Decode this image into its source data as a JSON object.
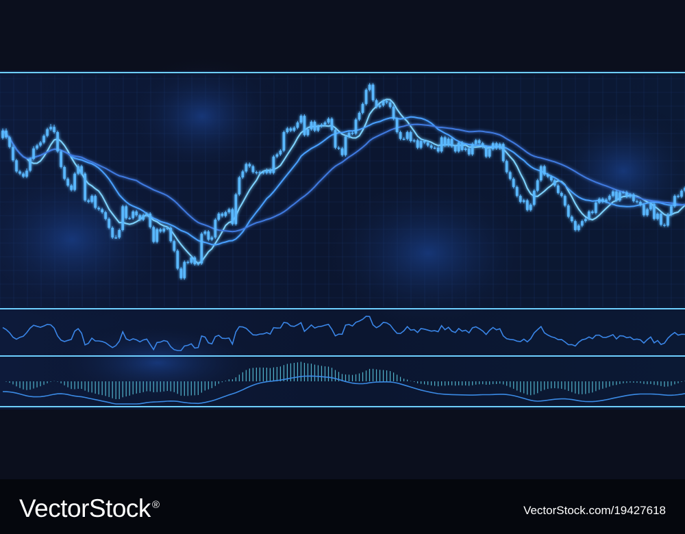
{
  "chart_data": {
    "type": "candlestick",
    "panels": [
      {
        "name": "price",
        "type": "candlestick",
        "x": [
          0,
          1,
          2,
          3,
          4,
          5,
          6,
          7,
          8,
          9,
          10,
          11,
          12,
          13,
          14,
          15,
          16,
          17,
          18,
          19,
          20,
          21,
          22,
          23,
          24,
          25,
          26,
          27,
          28,
          29,
          30,
          31,
          32,
          33,
          34,
          35,
          36,
          37,
          38,
          39,
          40,
          41,
          42,
          43,
          44,
          45,
          46,
          47,
          48,
          49,
          50,
          51,
          52,
          53,
          54,
          55,
          56,
          57,
          58,
          59,
          60,
          61,
          62,
          63,
          64,
          65,
          66,
          67,
          68,
          69,
          70,
          71,
          72,
          73,
          74,
          75,
          76,
          77,
          78,
          79,
          80,
          81,
          82,
          83,
          84,
          85,
          86,
          87,
          88,
          89,
          90,
          91,
          92,
          93,
          94,
          95,
          96,
          97,
          98,
          99,
          100,
          101,
          102,
          103,
          104,
          105,
          106,
          107,
          108,
          109,
          110,
          111,
          112,
          113,
          114,
          115,
          116,
          117,
          118,
          119,
          120,
          121,
          122,
          123,
          124,
          125,
          126,
          127,
          128,
          129,
          130,
          131,
          132,
          133,
          134,
          135,
          136,
          137,
          138,
          139,
          140,
          141,
          142,
          143,
          144,
          145,
          146,
          147,
          148,
          149,
          150,
          151,
          152,
          153,
          154,
          155,
          156,
          157,
          158,
          159,
          160,
          161,
          162,
          163,
          164,
          165,
          166,
          167,
          168,
          169,
          170,
          171,
          172,
          173,
          174,
          175,
          176,
          177,
          178,
          179,
          180,
          181,
          182,
          183,
          184,
          185,
          186,
          187,
          188,
          189,
          190,
          191,
          192,
          193,
          194,
          195,
          196,
          197,
          198,
          199
        ],
        "close": [
          350,
          341,
          328,
          310,
          295,
          292,
          288,
          296,
          312,
          326,
          330,
          334,
          343,
          352,
          355,
          348,
          322,
          301,
          285,
          276,
          270,
          292,
          302,
          292,
          256,
          254,
          262,
          246,
          244,
          240,
          231,
          219,
          206,
          206,
          216,
          248,
          232,
          232,
          241,
          236,
          230,
          236,
          238,
          220,
          200,
          217,
          214,
          218,
          219,
          201,
          188,
          164,
          151,
          173,
          172,
          179,
          170,
          171,
          211,
          214,
          203,
          206,
          230,
          238,
          235,
          240,
          244,
          224,
          264,
          287,
          295,
          305,
          302,
          294,
          293,
          294,
          293,
          297,
          293,
          315,
          318,
          323,
          348,
          353,
          350,
          354,
          361,
          370,
          344,
          352,
          362,
          350,
          356,
          358,
          361,
          366,
          351,
          327,
          326,
          317,
          342,
          347,
          346,
          365,
          374,
          386,
          405,
          412,
          391,
          382,
          384,
          390,
          388,
          382,
          366,
          348,
          339,
          339,
          348,
          336,
          337,
          327,
          336,
          334,
          330,
          327,
          327,
          322,
          341,
          330,
          339,
          329,
          322,
          334,
          324,
          326,
          318,
          332,
          337,
          333,
          328,
          315,
          325,
          333,
          326,
          332,
          309,
          294,
          285,
          274,
          262,
          254,
          256,
          243,
          250,
          269,
          283,
          302,
          291,
          288,
          283,
          276,
          266,
          262,
          249,
          234,
          228,
          216,
          222,
          228,
          231,
          241,
          239,
          253,
          258,
          254,
          257,
          262,
          268,
          256,
          267,
          267,
          261,
          264,
          255,
          254,
          250,
          236,
          244,
          251,
          231,
          238,
          223,
          222,
          237,
          248,
          262,
          261,
          269,
          273
        ],
        "open": [
          340,
          350,
          341,
          328,
          310,
          295,
          292,
          288,
          296,
          312,
          326,
          330,
          334,
          343,
          352,
          355,
          348,
          322,
          301,
          285,
          276,
          270,
          292,
          302,
          292,
          256,
          254,
          262,
          246,
          244,
          240,
          231,
          219,
          206,
          206,
          216,
          248,
          232,
          232,
          241,
          236,
          230,
          236,
          238,
          220,
          200,
          217,
          214,
          218,
          219,
          201,
          188,
          164,
          151,
          173,
          172,
          179,
          170,
          171,
          211,
          214,
          203,
          206,
          230,
          238,
          235,
          240,
          244,
          224,
          264,
          287,
          295,
          305,
          302,
          294,
          293,
          294,
          293,
          297,
          293,
          315,
          318,
          323,
          348,
          353,
          350,
          354,
          361,
          370,
          344,
          352,
          362,
          350,
          356,
          358,
          361,
          366,
          351,
          327,
          326,
          317,
          342,
          347,
          346,
          365,
          374,
          386,
          405,
          412,
          391,
          382,
          384,
          390,
          388,
          382,
          366,
          348,
          339,
          339,
          348,
          336,
          337,
          327,
          336,
          334,
          330,
          327,
          327,
          322,
          341,
          330,
          339,
          329,
          322,
          334,
          324,
          326,
          318,
          332,
          337,
          333,
          328,
          315,
          325,
          333,
          326,
          332,
          309,
          294,
          285,
          274,
          262,
          254,
          256,
          243,
          250,
          269,
          283,
          302,
          291,
          288,
          283,
          276,
          266,
          262,
          249,
          234,
          228,
          216,
          222,
          228,
          231,
          241,
          239,
          253,
          258,
          254,
          257,
          262,
          268,
          256,
          267,
          267,
          261,
          264,
          255,
          254,
          250,
          236,
          244,
          251,
          231,
          238,
          223,
          222,
          237,
          248,
          262,
          261,
          269
        ],
        "high": [
          353,
          353,
          343,
          331,
          312,
          297,
          294,
          299,
          314,
          329,
          332,
          336,
          345,
          354,
          359,
          358,
          350,
          324,
          303,
          287,
          278,
          294,
          305,
          304,
          294,
          258,
          264,
          264,
          248,
          246,
          242,
          233,
          221,
          209,
          218,
          250,
          250,
          234,
          243,
          243,
          238,
          238,
          240,
          240,
          222,
          219,
          219,
          220,
          221,
          221,
          203,
          190,
          166,
          175,
          175,
          181,
          181,
          173,
          213,
          216,
          216,
          208,
          232,
          240,
          240,
          242,
          246,
          246,
          266,
          289,
          297,
          307,
          307,
          304,
          296,
          296,
          296,
          299,
          299,
          317,
          320,
          325,
          350,
          355,
          355,
          356,
          363,
          372,
          372,
          354,
          364,
          364,
          358,
          360,
          363,
          368,
          368,
          353,
          329,
          328,
          344,
          349,
          349,
          367,
          376,
          388,
          407,
          414,
          414,
          393,
          386,
          392,
          392,
          390,
          384,
          368,
          350,
          341,
          350,
          350,
          339,
          339,
          338,
          338,
          336,
          332,
          329,
          329,
          343,
          343,
          341,
          341,
          331,
          336,
          336,
          328,
          328,
          334,
          339,
          339,
          335,
          330,
          327,
          335,
          335,
          334,
          334,
          311,
          296,
          287,
          276,
          264,
          258,
          258,
          252,
          271,
          285,
          304,
          304,
          293,
          290,
          285,
          278,
          268,
          264,
          251,
          236,
          230,
          224,
          230,
          233,
          243,
          243,
          255,
          260,
          260,
          259,
          264,
          270,
          270,
          269,
          269,
          269,
          266,
          266,
          257,
          256,
          252,
          246,
          253,
          253,
          240,
          240,
          225,
          239,
          250,
          264,
          264,
          271,
          275
        ],
        "low": [
          338,
          339,
          326,
          308,
          293,
          290,
          286,
          286,
          294,
          310,
          324,
          328,
          332,
          341,
          350,
          346,
          320,
          299,
          283,
          274,
          268,
          268,
          290,
          290,
          254,
          252,
          252,
          244,
          242,
          238,
          229,
          217,
          204,
          204,
          204,
          214,
          230,
          230,
          230,
          234,
          228,
          228,
          234,
          218,
          198,
          198,
          212,
          212,
          216,
          199,
          186,
          162,
          149,
          149,
          170,
          170,
          168,
          168,
          169,
          209,
          201,
          201,
          204,
          228,
          233,
          233,
          238,
          222,
          222,
          262,
          285,
          293,
          300,
          292,
          291,
          291,
          291,
          291,
          291,
          291,
          313,
          316,
          321,
          346,
          348,
          348,
          352,
          359,
          342,
          342,
          350,
          348,
          348,
          354,
          356,
          359,
          349,
          325,
          324,
          315,
          315,
          340,
          344,
          344,
          363,
          372,
          384,
          403,
          389,
          380,
          380,
          382,
          386,
          380,
          364,
          346,
          337,
          337,
          337,
          334,
          334,
          325,
          325,
          332,
          328,
          325,
          325,
          320,
          320,
          328,
          328,
          327,
          320,
          320,
          322,
          322,
          316,
          316,
          330,
          331,
          326,
          313,
          313,
          323,
          324,
          324,
          307,
          292,
          283,
          272,
          260,
          252,
          252,
          241,
          241,
          248,
          267,
          281,
          289,
          286,
          281,
          274,
          264,
          260,
          247,
          232,
          226,
          214,
          214,
          220,
          226,
          229,
          237,
          237,
          251,
          252,
          252,
          255,
          260,
          254,
          254,
          265,
          259,
          259,
          253,
          252,
          248,
          234,
          234,
          242,
          229,
          229,
          221,
          220,
          220,
          235,
          246,
          259,
          259,
          267
        ]
      },
      {
        "name": "oscillator",
        "type": "line"
      },
      {
        "name": "macd",
        "type": "histogram"
      }
    ],
    "series": [
      {
        "name": "moving-average-fast",
        "color": "#7fd4ff"
      },
      {
        "name": "moving-average-mid",
        "color": "#4aa0ff"
      },
      {
        "name": "moving-average-slow",
        "color": "#3f7ae0"
      }
    ],
    "grid": true,
    "colors": {
      "candle": "#5ab8ff",
      "line": "#3a86e8",
      "divider": "#6fd0ff",
      "histogram": "#5fd0e8",
      "signal": "#3b8be6"
    }
  },
  "watermark": {
    "brand": "VectorStock",
    "registered": "®",
    "stock_id": "VectorStock.com/19427618"
  }
}
